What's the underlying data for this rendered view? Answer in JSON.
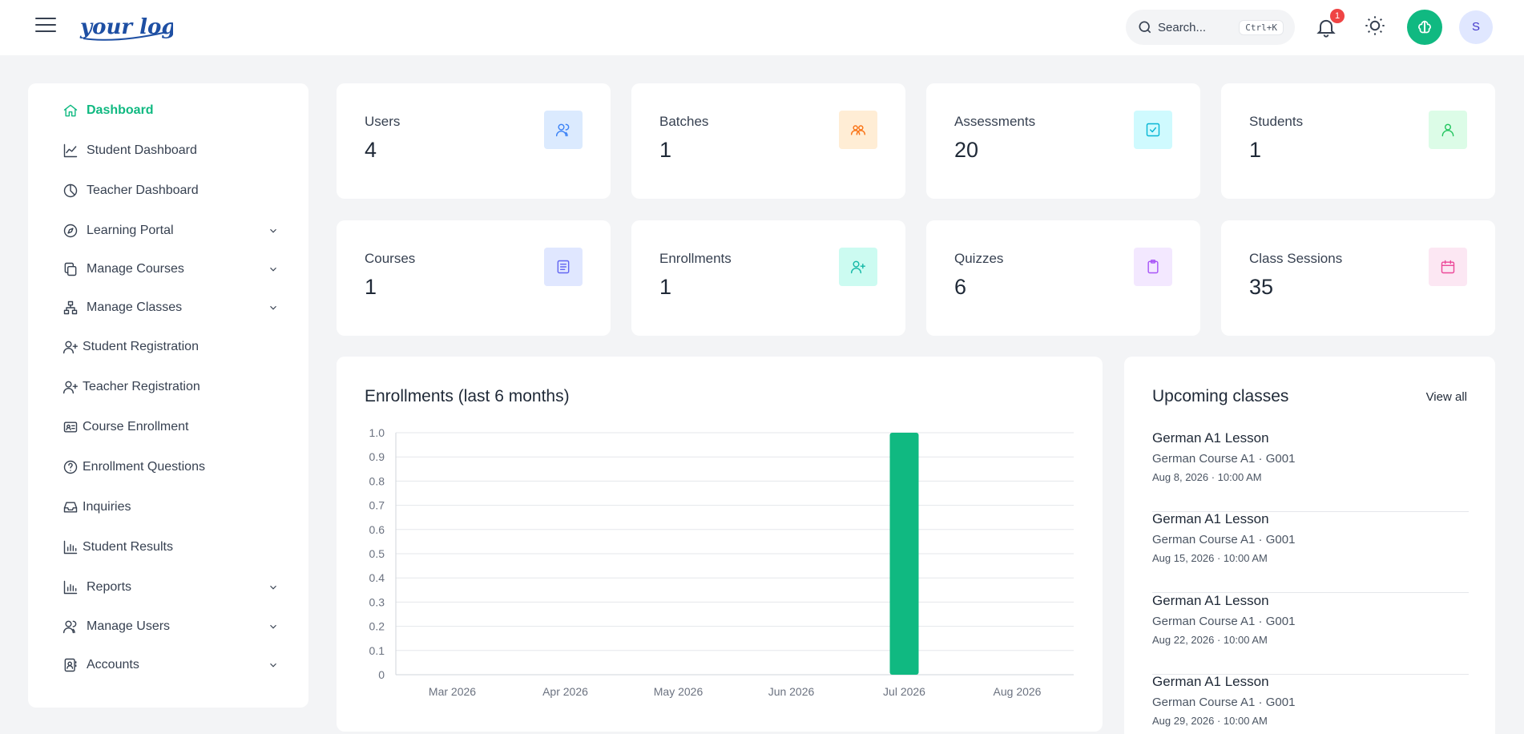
{
  "header": {
    "logo_text": "your logo",
    "search": {
      "placeholder": "Search...",
      "shortcut": "Ctrl+K"
    },
    "notifications": {
      "count": "1"
    },
    "user_initial": "S",
    "accent_color": "#10b981"
  },
  "sidebar": {
    "items": [
      {
        "label": "Dashboard",
        "icon": "home-icon",
        "active": true,
        "expandable": false
      },
      {
        "label": "Student Dashboard",
        "icon": "trend-icon",
        "expandable": false
      },
      {
        "label": "Teacher Dashboard",
        "icon": "pie-icon",
        "expandable": false
      },
      {
        "label": "Learning Portal",
        "icon": "compass-icon",
        "expandable": true
      },
      {
        "label": "Manage Courses",
        "icon": "copy-icon",
        "expandable": true
      },
      {
        "label": "Manage Classes",
        "icon": "hierarchy-icon",
        "expandable": true
      },
      {
        "label": "Student Registration",
        "icon": "user-plus-icon",
        "expandable": false
      },
      {
        "label": "Teacher Registration",
        "icon": "user-plus-icon",
        "expandable": false
      },
      {
        "label": "Course Enrollment",
        "icon": "id-card-icon",
        "expandable": false
      },
      {
        "label": "Enrollment Questions",
        "icon": "question-icon",
        "expandable": false
      },
      {
        "label": "Inquiries",
        "icon": "inbox-icon",
        "expandable": false
      },
      {
        "label": "Student Results",
        "icon": "bar-chart-icon",
        "expandable": false
      },
      {
        "label": "Reports",
        "icon": "bar-chart-icon",
        "expandable": true
      },
      {
        "label": "Manage Users",
        "icon": "users-icon",
        "expandable": true
      },
      {
        "label": "Accounts",
        "icon": "account-icon",
        "expandable": true
      }
    ]
  },
  "stats": [
    {
      "label": "Users",
      "value": "4",
      "icon": "users-icon",
      "bg": "#dbeafe",
      "fg": "#3b82f6"
    },
    {
      "label": "Batches",
      "value": "1",
      "icon": "group-icon",
      "bg": "#ffedd5",
      "fg": "#f97316"
    },
    {
      "label": "Assessments",
      "value": "20",
      "icon": "check-square-icon",
      "bg": "#cffafe",
      "fg": "#06b6d4"
    },
    {
      "label": "Students",
      "value": "1",
      "icon": "user-icon",
      "bg": "#dcfce7",
      "fg": "#22c55e"
    },
    {
      "label": "Courses",
      "value": "1",
      "icon": "book-icon",
      "bg": "#e0e7ff",
      "fg": "#6366f1"
    },
    {
      "label": "Enrollments",
      "value": "1",
      "icon": "user-plus-icon",
      "bg": "#ccfbf1",
      "fg": "#14b8a6"
    },
    {
      "label": "Quizzes",
      "value": "6",
      "icon": "clipboard-icon",
      "bg": "#f3e8ff",
      "fg": "#a855f7"
    },
    {
      "label": "Class Sessions",
      "value": "35",
      "icon": "calendar-icon",
      "bg": "#fce7f3",
      "fg": "#ec4899"
    }
  ],
  "chart_panel": {
    "title": "Enrollments (last 6 months)"
  },
  "chart_data": {
    "type": "bar",
    "categories": [
      "Mar 2026",
      "Apr 2026",
      "May 2026",
      "Jun 2026",
      "Jul 2026",
      "Aug 2026"
    ],
    "values": [
      0,
      0,
      0,
      0,
      1,
      0
    ],
    "ylim": [
      0,
      1.0
    ],
    "yticks": [
      "0",
      "0.1",
      "0.2",
      "0.3",
      "0.4",
      "0.5",
      "0.6",
      "0.7",
      "0.8",
      "0.9",
      "1.0"
    ],
    "bar_color": "#10b981",
    "grid": true
  },
  "upcoming": {
    "title": "Upcoming classes",
    "view_all": "View all",
    "items": [
      {
        "title": "German A1 Lesson",
        "subtitle": "German Course A1 · G001",
        "datetime": "Aug 8, 2026 · 10:00 AM"
      },
      {
        "title": "German A1 Lesson",
        "subtitle": "German Course A1 · G001",
        "datetime": "Aug 15, 2026 · 10:00 AM"
      },
      {
        "title": "German A1 Lesson",
        "subtitle": "German Course A1 · G001",
        "datetime": "Aug 22, 2026 · 10:00 AM"
      },
      {
        "title": "German A1 Lesson",
        "subtitle": "German Course A1 · G001",
        "datetime": "Aug 29, 2026 · 10:00 AM"
      }
    ]
  }
}
